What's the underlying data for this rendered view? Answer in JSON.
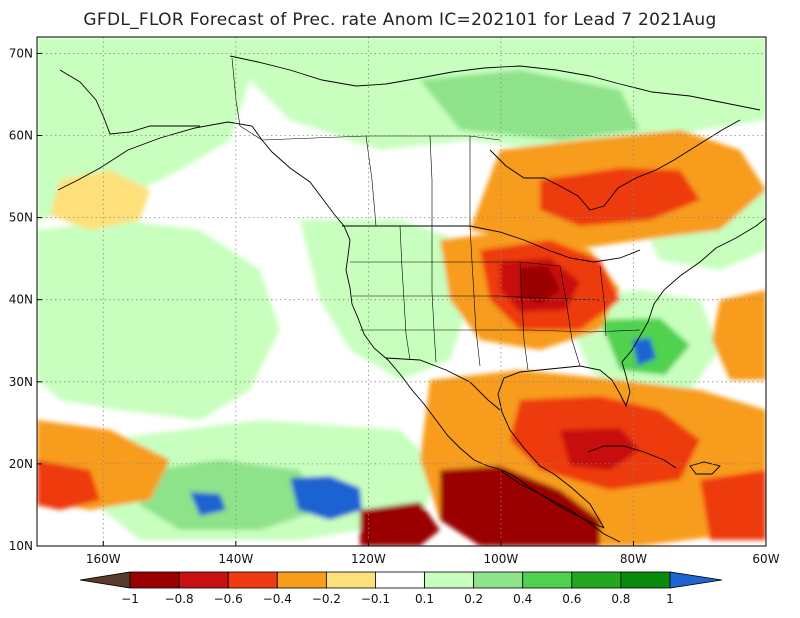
{
  "title": "GFDL_FLOR Forecast of Prec. rate Anom IC=202101 for Lead 7 2021Aug",
  "map": {
    "lat_labels": [
      "70N",
      "60N",
      "50N",
      "40N",
      "30N",
      "20N",
      "10N"
    ],
    "lon_labels": [
      "160W",
      "140W",
      "120W",
      "100W",
      "80W",
      "60W"
    ],
    "lon_range_deg": [
      -170,
      -60
    ],
    "lat_range_deg": [
      10,
      72
    ],
    "grid": "dotted"
  },
  "colorbar": {
    "labels": [
      "−1",
      "−0.8",
      "−0.6",
      "−0.4",
      "−0.2",
      "−0.1",
      "0.1",
      "0.2",
      "0.4",
      "0.6",
      "0.8",
      "1"
    ],
    "colors": [
      "#5a3a2c",
      "#9b0000",
      "#c81010",
      "#ee3a10",
      "#f79c1c",
      "#fde07a",
      "#ffffff",
      "#c8ffbe",
      "#8ee28a",
      "#50d24e",
      "#21a81f",
      "#0a8a0a",
      "#1e64d2"
    ]
  }
}
